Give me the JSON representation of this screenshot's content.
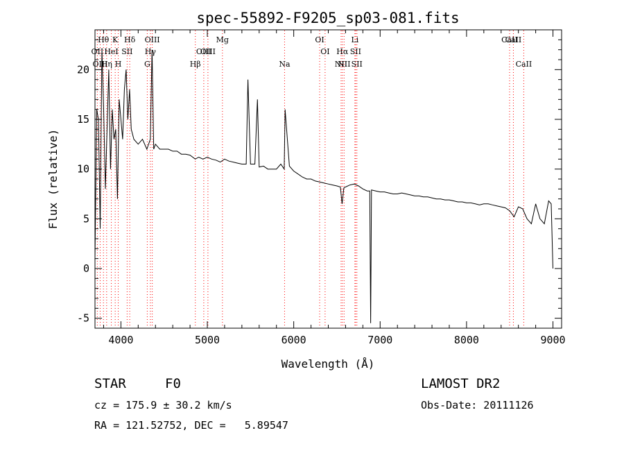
{
  "chart_data": {
    "type": "line",
    "title": "spec-55892-F9205_sp03-081.fits",
    "xlabel": "Wavelength (Å)",
    "ylabel": "Flux (relative)",
    "xlim": [
      3700,
      9100
    ],
    "ylim": [
      -6,
      24
    ],
    "xticks": [
      4000,
      5000,
      6000,
      7000,
      8000,
      9000
    ],
    "yticks": [
      -5,
      0,
      5,
      10,
      15,
      20
    ],
    "grid": false,
    "legend": "none",
    "colors": {
      "spectrum": "#000000",
      "line_markers": "#ff0000",
      "background": "#ffffff"
    },
    "spectral_lines": [
      {
        "name": "OII",
        "wavelength": 3727,
        "row": 2
      },
      {
        "name": "OIII",
        "wavelength": 3760,
        "row": 3
      },
      {
        "name": "Hθ",
        "wavelength": 3798,
        "row": 1
      },
      {
        "name": "Hη",
        "wavelength": 3835,
        "row": 3
      },
      {
        "name": "HeI",
        "wavelength": 3889,
        "row": 2
      },
      {
        "name": "K",
        "wavelength": 3934,
        "row": 1
      },
      {
        "name": "H",
        "wavelength": 3969,
        "row": 3
      },
      {
        "name": "SII",
        "wavelength": 4072,
        "row": 2
      },
      {
        "name": "Hδ",
        "wavelength": 4102,
        "row": 1
      },
      {
        "name": "G",
        "wavelength": 4305,
        "row": 3
      },
      {
        "name": "Hγ",
        "wavelength": 4341,
        "row": 2
      },
      {
        "name": "OIII",
        "wavelength": 4363,
        "row": 1
      },
      {
        "name": "Hβ",
        "wavelength": 4861,
        "row": 3
      },
      {
        "name": "OIII",
        "wavelength": 4959,
        "row": 2
      },
      {
        "name": "OIII",
        "wavelength": 5007,
        "row": 2
      },
      {
        "name": "Mg",
        "wavelength": 5175,
        "row": 1
      },
      {
        "name": "Na",
        "wavelength": 5894,
        "row": 3
      },
      {
        "name": "OI",
        "wavelength": 6300,
        "row": 1
      },
      {
        "name": "OI",
        "wavelength": 6363,
        "row": 2
      },
      {
        "name": "NII",
        "wavelength": 6548,
        "row": 3
      },
      {
        "name": "Hα",
        "wavelength": 6563,
        "row": 2
      },
      {
        "name": "NII",
        "wavelength": 6583,
        "row": 3
      },
      {
        "name": "Li",
        "wavelength": 6708,
        "row": 1
      },
      {
        "name": "SII",
        "wavelength": 6716,
        "row": 2
      },
      {
        "name": "SII",
        "wavelength": 6731,
        "row": 3
      },
      {
        "name": "CaII",
        "wavelength": 8498,
        "row": 1
      },
      {
        "name": "CaII",
        "wavelength": 8542,
        "row": 1
      },
      {
        "name": "CaII",
        "wavelength": 8662,
        "row": 3
      }
    ],
    "series": [
      {
        "x": [
          3700,
          3720,
          3740,
          3760,
          3780,
          3800,
          3820,
          3840,
          3860,
          3880,
          3900,
          3920,
          3940,
          3960,
          3980,
          4000,
          4020,
          4040,
          4060,
          4080,
          4100,
          4120,
          4150,
          4200,
          4250,
          4300,
          4340,
          4360,
          4380,
          4400,
          4450,
          4500,
          4550,
          4600,
          4650,
          4700,
          4750,
          4800,
          4860,
          4900,
          4950,
          5000,
          5050,
          5100,
          5150,
          5200,
          5250,
          5300,
          5350,
          5400,
          5450,
          5470,
          5500,
          5550,
          5580,
          5600,
          5650,
          5700,
          5750,
          5800,
          5850,
          5890,
          5900,
          5950,
          6000,
          6050,
          6100,
          6150,
          6200,
          6250,
          6300,
          6350,
          6400,
          6450,
          6500,
          6540,
          6560,
          6580,
          6600,
          6650,
          6700,
          6750,
          6800,
          6850,
          6880,
          6890,
          6900,
          6950,
          7000,
          7050,
          7100,
          7150,
          7200,
          7250,
          7300,
          7350,
          7400,
          7450,
          7500,
          7550,
          7600,
          7650,
          7700,
          7750,
          7800,
          7850,
          7900,
          7950,
          8000,
          8050,
          8100,
          8150,
          8200,
          8250,
          8300,
          8350,
          8400,
          8450,
          8500,
          8550,
          8600,
          8650,
          8700,
          8750,
          8800,
          8850,
          8900,
          8950,
          8980,
          9000
        ],
        "values": [
          1,
          16,
          15,
          4,
          22,
          16,
          8,
          14,
          20,
          10,
          16,
          13,
          14,
          7,
          17,
          15,
          13,
          18,
          20,
          15,
          18,
          14,
          13,
          12.5,
          13,
          12,
          13,
          22,
          12,
          12.5,
          12,
          12,
          12,
          11.8,
          11.8,
          11.5,
          11.5,
          11.4,
          11,
          11.2,
          11,
          11.2,
          11,
          10.9,
          10.7,
          11,
          10.8,
          10.7,
          10.6,
          10.5,
          10.5,
          19,
          10.5,
          10.5,
          17,
          10.2,
          10.3,
          10,
          10,
          10,
          10.5,
          10,
          16,
          10.3,
          9.8,
          9.5,
          9.2,
          9,
          9,
          8.8,
          8.7,
          8.6,
          8.5,
          8.4,
          8.3,
          8.2,
          6.5,
          8.1,
          8.2,
          8.4,
          8.5,
          8.3,
          8.0,
          7.8,
          7.8,
          -5.5,
          7.9,
          7.8,
          7.7,
          7.7,
          7.6,
          7.5,
          7.5,
          7.6,
          7.5,
          7.4,
          7.3,
          7.3,
          7.2,
          7.2,
          7.1,
          7.0,
          7.0,
          6.9,
          6.9,
          6.8,
          6.7,
          6.7,
          6.6,
          6.6,
          6.5,
          6.4,
          6.5,
          6.5,
          6.4,
          6.3,
          6.2,
          6.1,
          5.8,
          5.2,
          6.2,
          6.0,
          5.0,
          4.5,
          6.5,
          5.0,
          4.5,
          6.8,
          6.5,
          0
        ]
      }
    ]
  },
  "footer": {
    "object_class": "STAR",
    "subclass": "F0",
    "survey": "LAMOST DR2",
    "cz": "cz = 175.9 ± 30.2 km/s",
    "obs_date": "Obs-Date: 20111126",
    "coords": "RA = 121.52752, DEC =   5.89547"
  }
}
